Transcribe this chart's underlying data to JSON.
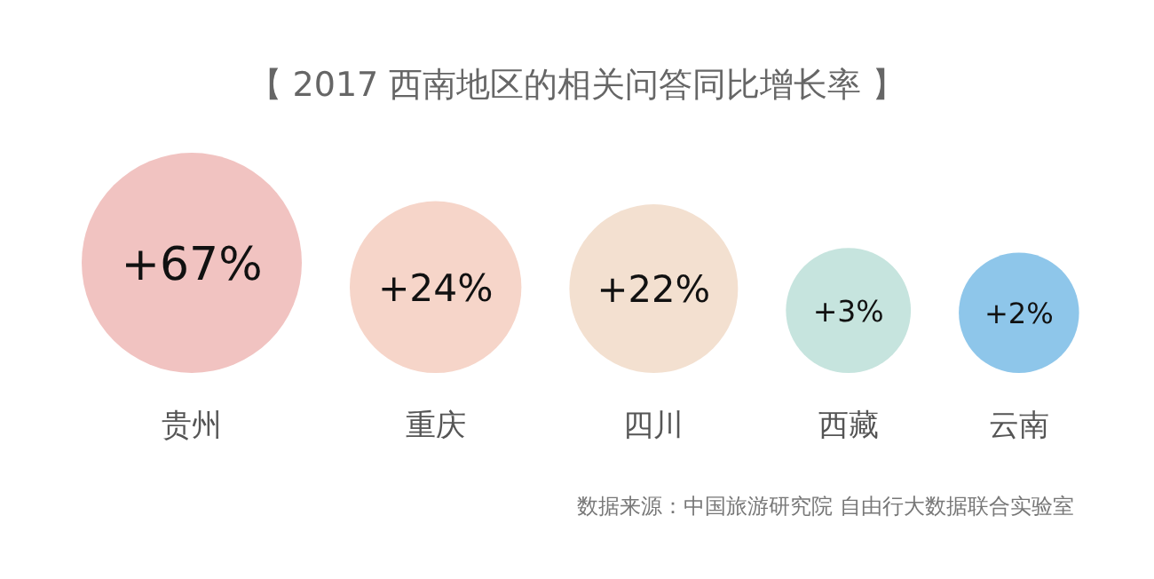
{
  "chart_data": {
    "type": "other",
    "title": "【 2017 西南地区的相关问答同比增长率 】",
    "categories": [
      "贵州",
      "重庆",
      "四川",
      "西藏",
      "云南"
    ],
    "values": [
      67,
      24,
      22,
      3,
      2
    ],
    "value_labels": [
      "+67%",
      "+24%",
      "+22%",
      "+3%",
      "+2%"
    ],
    "colors": [
      "#f1c3c1",
      "#f6d5c9",
      "#f3e0d0",
      "#c6e4de",
      "#8ec6ea"
    ],
    "annotations": [
      "数据来源：中国旅游研究院 自由行大数据联合实验室"
    ]
  }
}
